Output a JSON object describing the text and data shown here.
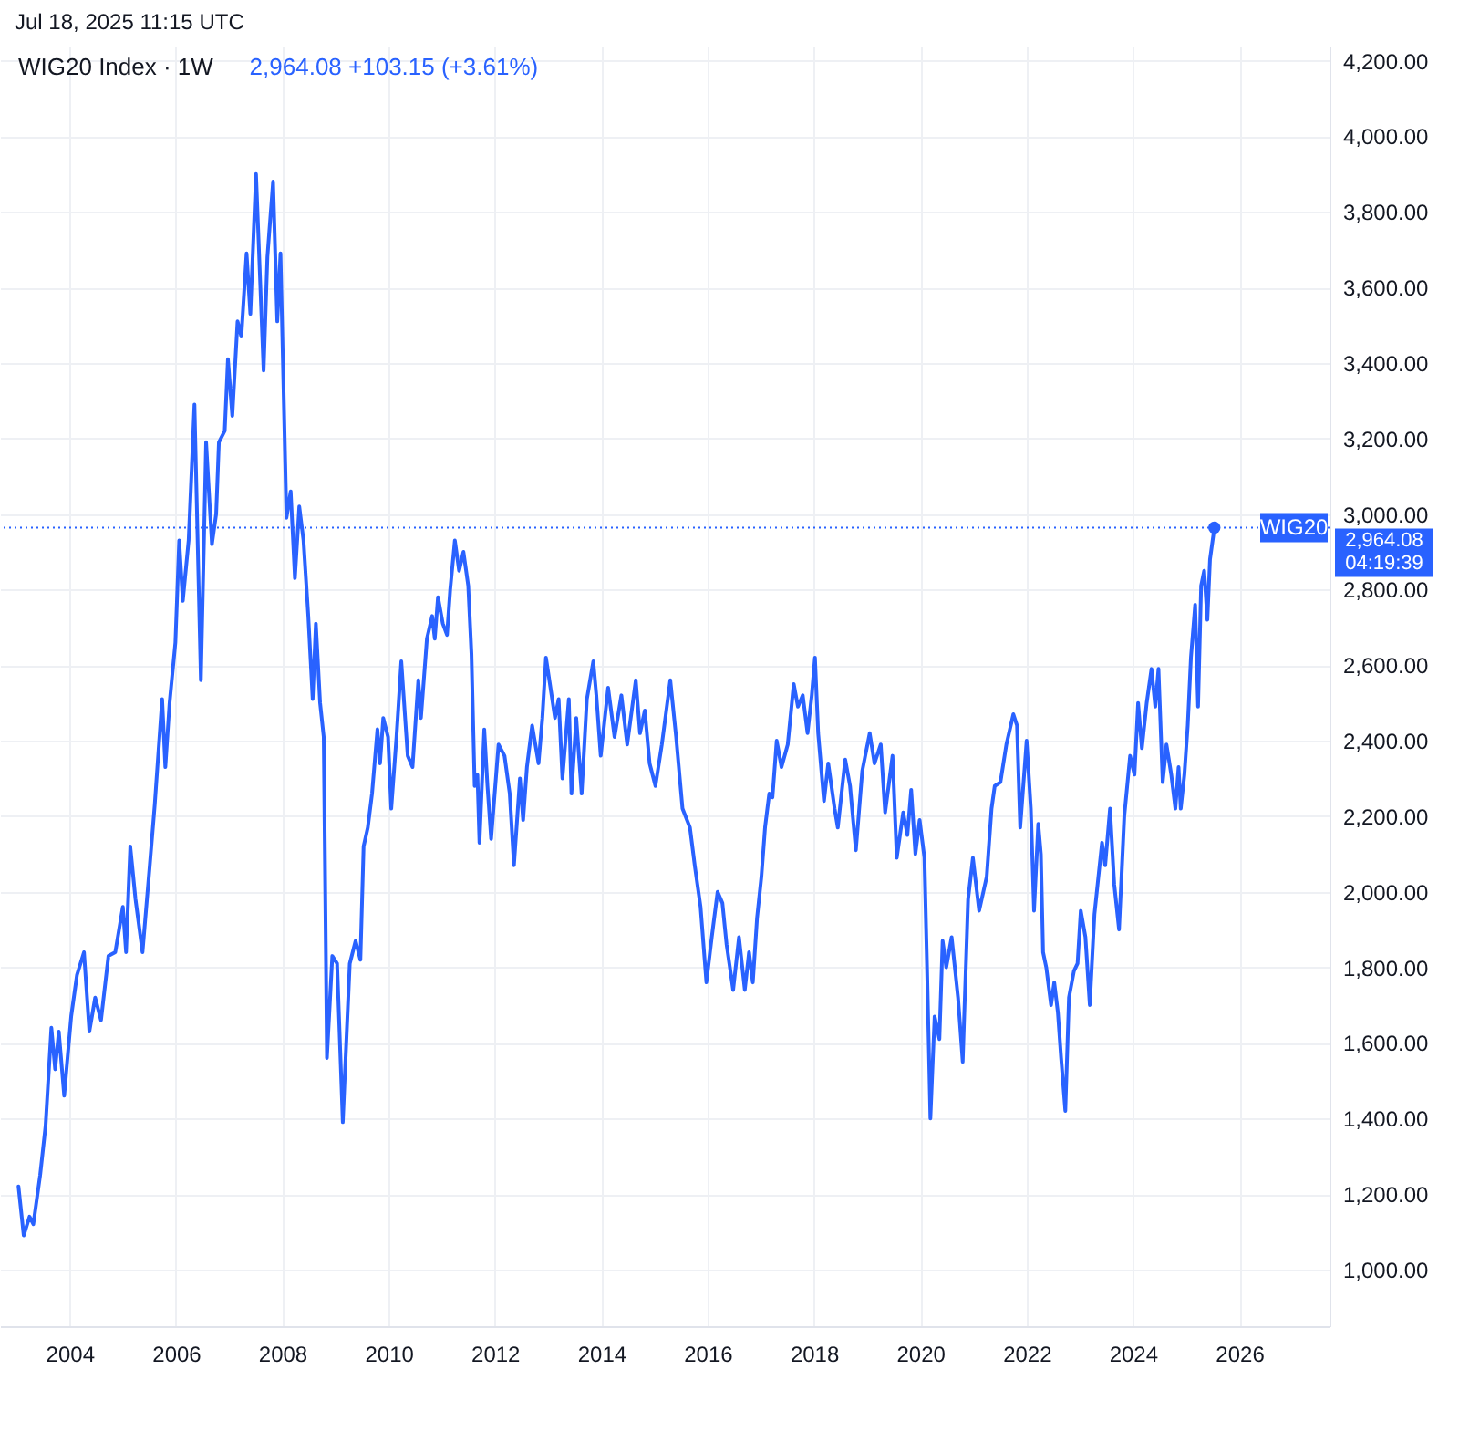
{
  "chart_data": {
    "type": "line",
    "title": "WIG20 Index · 1W",
    "subtitle": "Jul 18, 2025 11:15 UTC",
    "annotations": [
      "2,964.08 +103.15 (+3.61%)",
      "2,964.08",
      "04:19:39"
    ],
    "x": [
      "2003-01-15",
      "2003-02-20",
      "2003-04-01",
      "2003-04-27",
      "2003-06-13",
      "2003-07-20",
      "2003-08-29",
      "2003-09-24",
      "2003-10-19",
      "2003-11-25",
      "2004-01-12",
      "2004-02-21",
      "2004-04-09",
      "2004-05-16",
      "2004-06-25",
      "2004-08-04",
      "2004-09-24",
      "2004-11-10",
      "2005-01-01",
      "2005-01-23",
      "2005-02-21",
      "2005-03-29",
      "2005-05-16",
      "2005-07-05",
      "2005-08-08",
      "2005-09-28",
      "2005-10-20",
      "2005-11-18",
      "2005-12-28",
      "2006-01-23",
      "2006-02-17",
      "2006-03-29",
      "2006-05-08",
      "2006-06-21",
      "2006-07-27",
      "2006-09-05",
      "2006-10-04",
      "2006-10-23",
      "2006-12-02",
      "2006-12-24",
      "2007-01-23",
      "2007-02-28",
      "2007-03-26",
      "2007-05-01",
      "2007-05-27",
      "2007-07-05",
      "2007-08-26",
      "2007-09-21",
      "2007-10-30",
      "2007-11-28",
      "2007-12-20",
      "2008-01-30",
      "2008-02-28",
      "2008-03-28",
      "2008-04-27",
      "2008-05-26",
      "2008-06-28",
      "2008-07-28",
      "2008-08-19",
      "2008-09-17",
      "2008-10-12",
      "2008-11-03",
      "2008-12-10",
      "2009-01-12",
      "2009-02-20",
      "2009-04-09",
      "2009-05-19",
      "2009-06-21",
      "2009-07-13",
      "2009-08-11",
      "2009-09-09",
      "2009-10-16",
      "2009-11-03",
      "2009-11-25",
      "2009-12-28",
      "2010-01-19",
      "2010-02-24",
      "2010-03-29",
      "2010-05-12",
      "2010-06-14",
      "2010-07-24",
      "2010-08-11",
      "2010-09-21",
      "2010-10-27",
      "2010-11-14",
      "2010-12-06",
      "2011-01-08",
      "2011-02-06",
      "2011-02-28",
      "2011-04-01",
      "2011-04-30",
      "2011-05-30",
      "2011-07-02",
      "2011-07-24",
      "2011-08-15",
      "2011-09-03",
      "2011-09-17",
      "2011-10-20",
      "2011-11-11",
      "2011-12-06",
      "2012-01-26",
      "2012-03-07",
      "2012-04-12",
      "2012-05-11",
      "2012-06-21",
      "2012-07-13",
      "2012-08-08",
      "2012-09-13",
      "2012-10-27",
      "2012-11-22",
      "2012-12-17",
      "2013-02-17",
      "2013-03-14",
      "2013-04-09",
      "2013-05-23",
      "2013-06-10",
      "2013-07-13",
      "2013-08-19",
      "2013-09-24",
      "2013-11-07",
      "2013-11-28",
      "2013-12-28",
      "2014-02-17",
      "2014-04-02",
      "2014-05-19",
      "2014-06-28",
      "2014-08-26",
      "2014-09-24",
      "2014-10-27",
      "2014-11-29",
      "2015-01-08",
      "2015-02-21",
      "2015-04-20",
      "2015-05-30",
      "2015-07-13",
      "2015-09-02",
      "2015-10-05",
      "2015-11-14",
      "2015-12-24",
      "2016-01-30",
      "2016-03-10",
      "2016-04-12",
      "2016-05-11",
      "2016-06-25",
      "2016-08-04",
      "2016-09-13",
      "2016-10-12",
      "2016-11-07",
      "2016-12-06",
      "2017-01-05",
      "2017-01-30",
      "2017-02-28",
      "2017-03-22",
      "2017-04-20",
      "2017-05-23",
      "2017-07-05",
      "2017-08-15",
      "2017-09-13",
      "2017-10-16",
      "2017-11-18",
      "2017-12-17",
      "2018-01-08",
      "2018-01-30",
      "2018-03-11",
      "2018-04-09",
      "2018-05-23",
      "2018-06-14",
      "2018-08-04",
      "2018-09-06",
      "2018-10-16",
      "2018-11-29",
      "2019-01-19",
      "2019-02-21",
      "2019-04-05",
      "2019-05-05",
      "2019-06-25",
      "2019-07-24",
      "2019-09-06",
      "2019-10-05",
      "2019-10-31",
      "2019-11-29",
      "2019-12-28",
      "2020-01-30",
      "2020-02-17",
      "2020-03-11",
      "2020-04-09",
      "2020-05-12",
      "2020-06-03",
      "2020-06-28",
      "2020-08-04",
      "2020-09-17",
      "2020-10-19",
      "2020-11-25",
      "2020-12-28",
      "2021-02-09",
      "2021-04-02",
      "2021-05-05",
      "2021-05-27",
      "2021-07-05",
      "2021-08-15",
      "2021-10-02",
      "2021-10-27",
      "2021-11-18",
      "2022-01-01",
      "2022-01-30",
      "2022-02-21",
      "2022-03-22",
      "2022-04-09",
      "2022-04-24",
      "2022-05-16",
      "2022-06-18",
      "2022-07-10",
      "2022-08-04",
      "2022-08-26",
      "2022-09-24",
      "2022-10-19",
      "2022-11-22",
      "2022-12-17",
      "2023-01-08",
      "2023-02-09",
      "2023-03-11",
      "2023-04-12",
      "2023-06-03",
      "2023-06-25",
      "2023-07-28",
      "2023-08-26",
      "2023-09-28",
      "2023-11-03",
      "2023-12-13",
      "2024-01-12",
      "2024-02-06",
      "2024-03-03",
      "2024-04-05",
      "2024-05-08",
      "2024-06-03",
      "2024-06-25",
      "2024-07-24",
      "2024-08-19",
      "2024-09-21",
      "2024-10-19",
      "2024-11-10",
      "2024-11-25",
      "2024-12-20",
      "2025-01-12",
      "2025-02-03",
      "2025-03-04",
      "2025-03-24",
      "2025-04-14",
      "2025-05-05",
      "2025-05-27",
      "2025-06-14",
      "2025-07-14"
    ],
    "series": [
      {
        "color": "#2962ff",
        "values": [
          1220,
          1090,
          1140,
          1120,
          1250,
          1380,
          1640,
          1530,
          1630,
          1460,
          1670,
          1780,
          1840,
          1630,
          1720,
          1660,
          1830,
          1840,
          1960,
          1840,
          2120,
          1980,
          1840,
          2070,
          2230,
          2510,
          2330,
          2500,
          2660,
          2930,
          2770,
          2930,
          3290,
          2560,
          3190,
          2920,
          3000,
          3190,
          3220,
          3410,
          3260,
          3510,
          3470,
          3690,
          3530,
          3900,
          3380,
          3680,
          3880,
          3510,
          3690,
          2990,
          3060,
          2830,
          3020,
          2930,
          2730,
          2510,
          2710,
          2500,
          2410,
          1560,
          1830,
          1810,
          1390,
          1810,
          1870,
          1820,
          2120,
          2170,
          2260,
          2430,
          2340,
          2460,
          2410,
          2220,
          2410,
          2610,
          2360,
          2330,
          2560,
          2460,
          2670,
          2730,
          2670,
          2780,
          2710,
          2680,
          2800,
          2930,
          2850,
          2900,
          2810,
          2630,
          2280,
          2310,
          2130,
          2430,
          2280,
          2140,
          2390,
          2360,
          2260,
          2070,
          2300,
          2190,
          2330,
          2440,
          2340,
          2460,
          2620,
          2460,
          2510,
          2300,
          2510,
          2260,
          2460,
          2260,
          2510,
          2610,
          2520,
          2360,
          2540,
          2410,
          2520,
          2390,
          2560,
          2420,
          2480,
          2340,
          2280,
          2390,
          2560,
          2410,
          2220,
          2170,
          2070,
          1960,
          1760,
          1880,
          2000,
          1970,
          1860,
          1740,
          1880,
          1740,
          1840,
          1760,
          1930,
          2040,
          2170,
          2260,
          2250,
          2400,
          2330,
          2390,
          2550,
          2490,
          2520,
          2420,
          2520,
          2620,
          2420,
          2240,
          2340,
          2220,
          2170,
          2350,
          2280,
          2110,
          2320,
          2420,
          2340,
          2390,
          2210,
          2360,
          2090,
          2210,
          2150,
          2270,
          2100,
          2190,
          2090,
          1800,
          1400,
          1670,
          1610,
          1870,
          1800,
          1880,
          1720,
          1550,
          1980,
          2090,
          1950,
          2040,
          2220,
          2280,
          2290,
          2390,
          2470,
          2440,
          2170,
          2400,
          2220,
          1950,
          2180,
          2100,
          1840,
          1800,
          1700,
          1760,
          1680,
          1560,
          1420,
          1720,
          1790,
          1810,
          1950,
          1880,
          1700,
          1940,
          2130,
          2070,
          2220,
          2020,
          1900,
          2200,
          2360,
          2310,
          2500,
          2380,
          2500,
          2590,
          2490,
          2590,
          2290,
          2390,
          2310,
          2220,
          2330,
          2220,
          2310,
          2440,
          2620,
          2760,
          2490,
          2810,
          2850,
          2720,
          2880,
          2964.08
        ]
      },
      {
        "type": "scatter",
        "x": [
          "2025-07-14"
        ],
        "color": "#2962ff",
        "marker": "circle",
        "values": [
          2964.08
        ]
      }
    ],
    "xlim": [
      "2002-09-10",
      "2027-09-13"
    ],
    "xticks": [
      "2004",
      "2006",
      "2008",
      "2010",
      "2012",
      "2014",
      "2016",
      "2018",
      "2020",
      "2022",
      "2024",
      "2026"
    ],
    "ylim": [
      850,
      4240
    ],
    "yticks": [
      {
        "value": 1000,
        "label": "1,000.00"
      },
      {
        "value": 1200,
        "label": "1,200.00"
      },
      {
        "value": 1400,
        "label": "1,400.00"
      },
      {
        "value": 1600,
        "label": "1,600.00"
      },
      {
        "value": 1800,
        "label": "1,800.00"
      },
      {
        "value": 2000,
        "label": "2,000.00"
      },
      {
        "value": 2200,
        "label": "2,200.00"
      },
      {
        "value": 2400,
        "label": "2,400.00"
      },
      {
        "value": 2600,
        "label": "2,600.00"
      },
      {
        "value": 2800,
        "label": "2,800.00"
      },
      {
        "value": 3000,
        "label": "3,000.00"
      },
      {
        "value": 3200,
        "label": "3,200.00"
      },
      {
        "value": 3400,
        "label": "3,400.00"
      },
      {
        "value": 3600,
        "label": "3,600.00"
      },
      {
        "value": 3800,
        "label": "3,800.00"
      },
      {
        "value": 4000,
        "label": "4,000.00"
      },
      {
        "value": 4200,
        "label": "4,200.00"
      }
    ],
    "ref_lines": [
      {
        "axis": "y",
        "value": 2964.08,
        "label": "WIG20",
        "color": "#2962ff",
        "line_style": "dotted"
      }
    ],
    "grid": true,
    "marker": "none",
    "line_style": "solid"
  }
}
